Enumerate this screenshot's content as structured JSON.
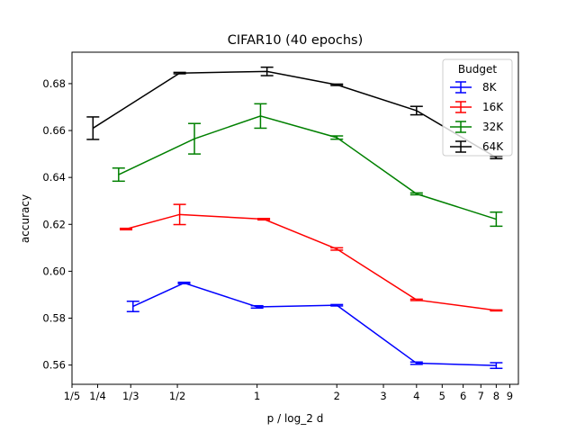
{
  "chart_data": {
    "type": "line",
    "title": "CIFAR10 (40 epochs)",
    "xlabel": "p / log_2 d",
    "ylabel": "accuracy",
    "xscale": "log",
    "xlim": [
      0.2,
      9.7
    ],
    "ylim": [
      0.5518,
      0.6934
    ],
    "xticks": [
      {
        "value": 0.2,
        "label": "1/5"
      },
      {
        "value": 0.25,
        "label": "1/4"
      },
      {
        "value": 0.3333,
        "label": "1/3"
      },
      {
        "value": 0.5,
        "label": "1/2"
      },
      {
        "value": 1,
        "label": "1"
      },
      {
        "value": 2,
        "label": "2"
      },
      {
        "value": 3,
        "label": "3"
      },
      {
        "value": 4,
        "label": "4"
      },
      {
        "value": 5,
        "label": "5"
      },
      {
        "value": 6,
        "label": "6"
      },
      {
        "value": 7,
        "label": "7"
      },
      {
        "value": 8,
        "label": "8"
      },
      {
        "value": 9,
        "label": "9"
      }
    ],
    "yticks": [
      {
        "value": 0.56,
        "label": "0.56"
      },
      {
        "value": 0.58,
        "label": "0.58"
      },
      {
        "value": 0.6,
        "label": "0.60"
      },
      {
        "value": 0.62,
        "label": "0.62"
      },
      {
        "value": 0.64,
        "label": "0.64"
      },
      {
        "value": 0.66,
        "label": "0.66"
      },
      {
        "value": 0.68,
        "label": "0.68"
      }
    ],
    "grid": false,
    "legend": {
      "title": "Budget",
      "placement": "top-right"
    },
    "series": [
      {
        "name": "8K",
        "color": "#0000ff",
        "x": [
          0.34,
          0.53,
          1.0,
          2.0,
          4.0,
          8.0
        ],
        "y": [
          0.585,
          0.595,
          0.5848,
          0.5855,
          0.5608,
          0.5598
        ],
        "err": [
          0.0022,
          0.0003,
          0.0005,
          0.0003,
          0.0005,
          0.0012
        ]
      },
      {
        "name": "16K",
        "color": "#ff0000",
        "x": [
          0.32,
          0.51,
          1.06,
          2.0,
          4.0,
          8.0
        ],
        "y": [
          0.618,
          0.6242,
          0.6222,
          0.6095,
          0.5878,
          0.5833
        ],
        "err": [
          0.0003,
          0.0043,
          0.0003,
          0.0005,
          0.0003,
          0.0002
        ]
      },
      {
        "name": "32K",
        "color": "#008000",
        "x": [
          0.3,
          0.58,
          1.03,
          2.0,
          4.0,
          8.0
        ],
        "y": [
          0.6412,
          0.6565,
          0.6662,
          0.657,
          0.633,
          0.6222
        ],
        "err": [
          0.0028,
          0.0065,
          0.0052,
          0.0007,
          0.0004,
          0.003
        ]
      },
      {
        "name": "64K",
        "color": "#000000",
        "x": [
          0.24,
          0.51,
          1.09,
          2.0,
          4.0,
          8.0
        ],
        "y": [
          0.661,
          0.6845,
          0.6852,
          0.6795,
          0.6685,
          0.6485
        ],
        "err": [
          0.0048,
          0.0003,
          0.0018,
          0.0003,
          0.0018,
          0.0005
        ]
      }
    ]
  }
}
